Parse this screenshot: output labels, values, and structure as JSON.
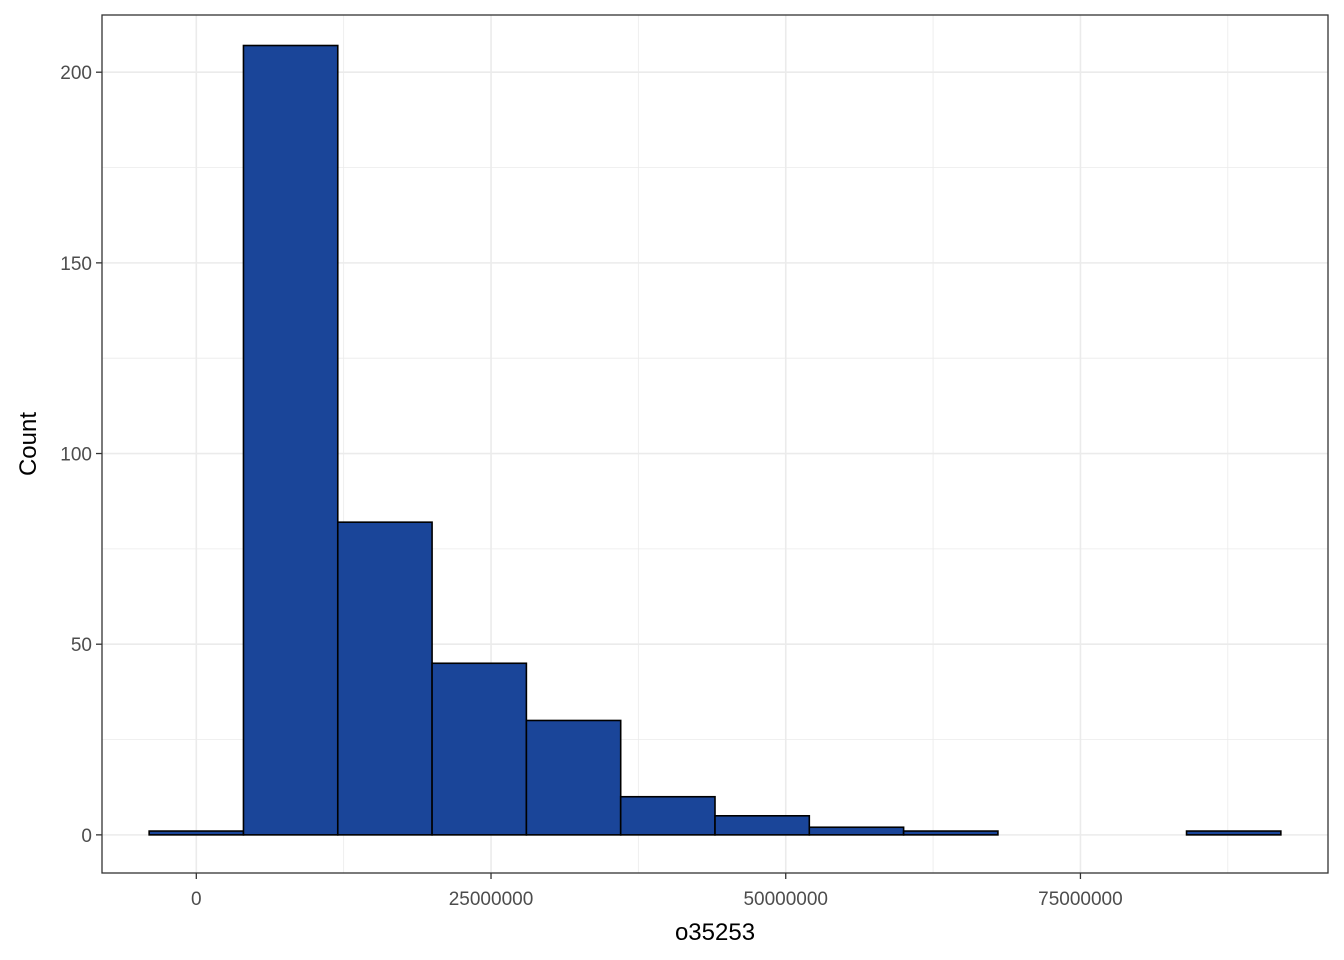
{
  "chart_data": {
    "type": "bar",
    "subtype": "histogram",
    "xlabel": "o35253",
    "ylabel": "Count",
    "xlim": [
      -8000000,
      96000000
    ],
    "ylim": [
      -10,
      215
    ],
    "x_ticks": [
      0,
      25000000,
      50000000,
      75000000
    ],
    "x_tick_labels": [
      "0",
      "25000000",
      "50000000",
      "75000000"
    ],
    "y_ticks": [
      0,
      50,
      100,
      150,
      200
    ],
    "y_tick_labels": [
      "0",
      "50",
      "100",
      "150",
      "200"
    ],
    "grid": true,
    "bins": [
      {
        "x0": -4000000,
        "x1": 4000000,
        "count": 1
      },
      {
        "x0": 4000000,
        "x1": 12000000,
        "count": 207
      },
      {
        "x0": 12000000,
        "x1": 20000000,
        "count": 82
      },
      {
        "x0": 20000000,
        "x1": 28000000,
        "count": 45
      },
      {
        "x0": 28000000,
        "x1": 36000000,
        "count": 30
      },
      {
        "x0": 36000000,
        "x1": 44000000,
        "count": 10
      },
      {
        "x0": 44000000,
        "x1": 52000000,
        "count": 5
      },
      {
        "x0": 52000000,
        "x1": 60000000,
        "count": 2
      },
      {
        "x0": 60000000,
        "x1": 68000000,
        "count": 1
      },
      {
        "x0": 68000000,
        "x1": 76000000,
        "count": 0
      },
      {
        "x0": 76000000,
        "x1": 84000000,
        "count": 0
      },
      {
        "x0": 84000000,
        "x1": 92000000,
        "count": 1
      }
    ],
    "colors": {
      "fill": "#1a4599",
      "stroke": "#000000",
      "grid": "#ebebeb",
      "panel_border": "#333333"
    }
  }
}
